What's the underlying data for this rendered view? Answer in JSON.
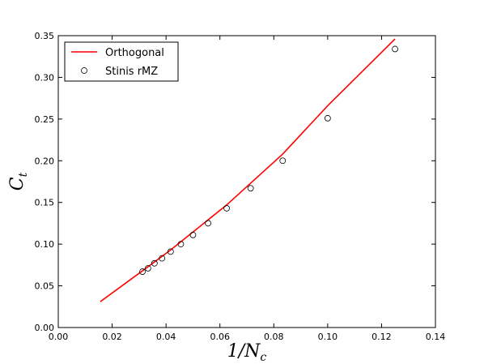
{
  "chart_data": {
    "type": "line",
    "xlabel": {
      "main": "1/N",
      "sub": "c"
    },
    "ylabel": {
      "main": "C",
      "sub": "t"
    },
    "xlim": [
      0.0,
      0.14
    ],
    "ylim": [
      0.0,
      0.35
    ],
    "xticks": [
      0.0,
      0.02,
      0.04,
      0.06,
      0.08,
      0.1,
      0.12,
      0.14
    ],
    "xtick_labels": [
      "0.00",
      "0.02",
      "0.04",
      "0.06",
      "0.08",
      "0.10",
      "0.12",
      "0.14"
    ],
    "yticks": [
      0.0,
      0.05,
      0.1,
      0.15,
      0.2,
      0.25,
      0.3,
      0.35
    ],
    "ytick_labels": [
      "0.00",
      "0.05",
      "0.10",
      "0.15",
      "0.20",
      "0.25",
      "0.30",
      "0.35"
    ],
    "grid": false,
    "legend_position": "top-left",
    "series": [
      {
        "name": "Orthogonal",
        "style": "line",
        "color": "#ff0000",
        "x": [
          0.0156,
          0.03125,
          0.0417,
          0.0625,
          0.0833,
          0.1,
          0.125
        ],
        "y": [
          0.031,
          0.068,
          0.093,
          0.147,
          0.208,
          0.266,
          0.346
        ]
      },
      {
        "name": "Stinis rMZ",
        "style": "markers",
        "marker": "open-circle",
        "color": "#000000",
        "x": [
          0.03125,
          0.0333,
          0.0357,
          0.0385,
          0.0417,
          0.0455,
          0.05,
          0.0556,
          0.0625,
          0.0714,
          0.0833,
          0.1,
          0.125
        ],
        "y": [
          0.067,
          0.071,
          0.077,
          0.083,
          0.091,
          0.1,
          0.111,
          0.125,
          0.143,
          0.167,
          0.2,
          0.251,
          0.334
        ]
      }
    ]
  }
}
